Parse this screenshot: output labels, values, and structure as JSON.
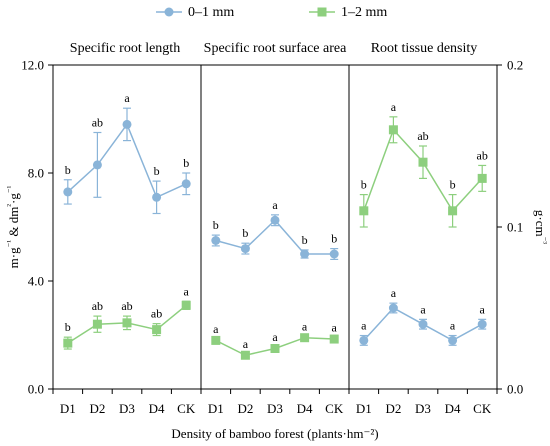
{
  "chart_data": {
    "type": "line",
    "legend_position": "top",
    "xlabel": "Density of bamboo forest (plants·hm⁻²)",
    "ylabel_left": [
      "m·g",
      "⁻¹",
      " & dm",
      "²",
      "·g",
      "⁻¹"
    ],
    "ylabel_right": [
      "g·cm",
      "⁻³"
    ],
    "left_axis": {
      "ylim": [
        0,
        12
      ],
      "ticks": [
        "0.0",
        "4.0",
        "8.0",
        "12.0"
      ],
      "tick_values": [
        0,
        4,
        8,
        12
      ]
    },
    "right_axis": {
      "ylim": [
        0,
        0.2
      ],
      "ticks": [
        "0.0",
        "0.1",
        "0.2"
      ],
      "tick_values": [
        0,
        0.1,
        0.2
      ]
    },
    "categories": [
      "D1",
      "D2",
      "D3",
      "D4",
      "CK"
    ],
    "series_styles": [
      {
        "name": "0–1 mm",
        "color": "#8ab4d8",
        "marker": "circle"
      },
      {
        "name": "1–2 mm",
        "color": "#8dcf7e",
        "marker": "square"
      }
    ],
    "panels": [
      {
        "title": "Specific root length",
        "axis": "left",
        "series": [
          {
            "name": "0–1 mm",
            "values": [
              7.3,
              8.3,
              9.8,
              7.1,
              7.6
            ],
            "errors": [
              0.45,
              1.2,
              0.6,
              0.6,
              0.4
            ],
            "letters": [
              "b",
              "ab",
              "a",
              "b",
              "b"
            ]
          },
          {
            "name": "1–2 mm",
            "values": [
              1.7,
              2.4,
              2.45,
              2.2,
              3.1
            ],
            "errors": [
              0.22,
              0.3,
              0.25,
              0.22,
              0.15
            ],
            "letters": [
              "b",
              "ab",
              "ab",
              "ab",
              "a"
            ]
          }
        ]
      },
      {
        "title": "Specific root surface area",
        "axis": "left",
        "series": [
          {
            "name": "0–1 mm",
            "values": [
              5.5,
              5.2,
              6.25,
              5.0,
              5.0
            ],
            "errors": [
              0.2,
              0.2,
              0.2,
              0.15,
              0.2
            ],
            "letters": [
              "b",
              "b",
              "a",
              "b",
              "b"
            ]
          },
          {
            "name": "1–2 mm",
            "values": [
              1.8,
              1.25,
              1.5,
              1.9,
              1.85
            ],
            "errors": [
              0.05,
              0.05,
              0.05,
              0.05,
              0.05
            ],
            "letters": [
              "a",
              "a",
              "a",
              "a",
              "a"
            ]
          }
        ]
      },
      {
        "title": "Root tissue density",
        "axis": "right",
        "series": [
          {
            "name": "0–1 mm",
            "values": [
              0.03,
              0.05,
              0.04,
              0.03,
              0.04
            ],
            "errors": [
              0.003,
              0.003,
              0.003,
              0.003,
              0.003
            ],
            "letters": [
              "a",
              "a",
              "a",
              "a",
              "a"
            ]
          },
          {
            "name": "1–2 mm",
            "values": [
              0.11,
              0.16,
              0.14,
              0.11,
              0.13
            ],
            "errors": [
              0.01,
              0.008,
              0.01,
              0.01,
              0.008
            ],
            "letters": [
              "b",
              "a",
              "ab",
              "b",
              "ab"
            ]
          }
        ]
      }
    ]
  }
}
